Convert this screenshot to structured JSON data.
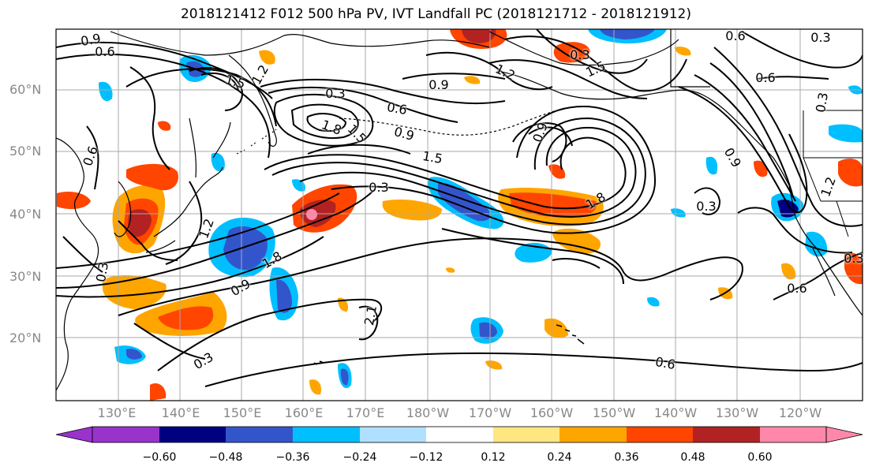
{
  "title": "2018121412 F012 500 hPa PV, IVT Landfall PC (2018121712 - 2018121912)",
  "lat_labels": [
    "60°N",
    "50°N",
    "40°N",
    "30°N",
    "20°N"
  ],
  "lon_labels": [
    "130°E",
    "140°E",
    "150°E",
    "160°E",
    "170°E",
    "180°W",
    "170°W",
    "160°W",
    "150°W",
    "140°W",
    "130°W",
    "120°W"
  ],
  "colorbar": {
    "ticks": [
      "−0.60",
      "−0.48",
      "−0.36",
      "−0.24",
      "−0.12",
      "0.12",
      "0.24",
      "0.36",
      "0.48",
      "0.60"
    ],
    "colors": [
      "#9933cc",
      "#000080",
      "#3355cc",
      "#00bfff",
      "#b0e0ff",
      "#ffffff",
      "#ffe680",
      "#ffa500",
      "#ff4500",
      "#b22222",
      "#ff88aa"
    ]
  },
  "contour_labels": [
    "0.9",
    "0.6",
    "1.5",
    "1.2",
    "0.3",
    "0.6",
    "1.8",
    "1.5",
    "0.9",
    "1.5",
    "0.3",
    "1.8",
    "0.9",
    "1.2",
    "1.5",
    "0.6",
    "0.3",
    "0.6",
    "0.3",
    "0.9",
    "1.2",
    "0.3",
    "0.3",
    "0.6",
    "0.6",
    "0.3",
    "0.9",
    "1.8",
    "2.1",
    "1.2",
    "0.6",
    "0.3",
    "0.9",
    "0.3"
  ],
  "map_colors": {
    "land": "#000000",
    "grid": "#aaaaaa",
    "frame": "#000000"
  }
}
